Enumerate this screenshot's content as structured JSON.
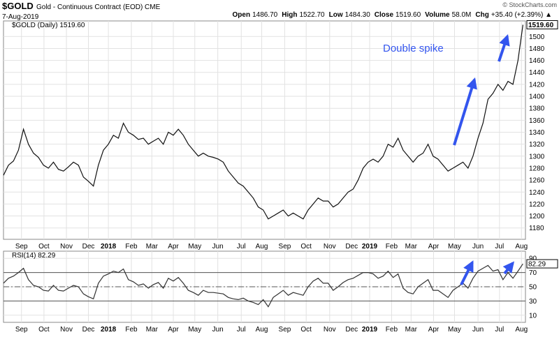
{
  "header": {
    "symbol": "$GOLD",
    "description": "Gold - Continuous Contract (EOD) CME",
    "date": "7-Aug-2019",
    "source": "© StockCharts.com",
    "quote": [
      {
        "label": "Open",
        "value": "1486.70"
      },
      {
        "label": "High",
        "value": "1522.70"
      },
      {
        "label": "Low",
        "value": "1484.30"
      },
      {
        "label": "Close",
        "value": "1519.60"
      },
      {
        "label": "Volume",
        "value": "58.0M"
      },
      {
        "label": "Chg",
        "value": "+35.40 (+2.39%) ▲"
      }
    ]
  },
  "chart_data": [
    {
      "type": "line",
      "legend": "$GOLD (Daily) 1519.60",
      "last_label": "1519.60",
      "annotation": "Double spike",
      "grid": true,
      "xlim": [
        0,
        104.5
      ],
      "ylim": [
        1161,
        1526
      ],
      "yticks": [
        1180,
        1200,
        1220,
        1240,
        1260,
        1280,
        1300,
        1320,
        1340,
        1360,
        1380,
        1400,
        1420,
        1440,
        1460,
        1480,
        1500
      ],
      "xticks": [
        {
          "value": 3.6,
          "label": "Sep"
        },
        {
          "value": 8.1,
          "label": "Oct"
        },
        {
          "value": 12.6,
          "label": "Nov"
        },
        {
          "value": 17,
          "label": "Dec"
        },
        {
          "value": 21,
          "label": "2018"
        },
        {
          "value": 25.6,
          "label": "Feb"
        },
        {
          "value": 29.7,
          "label": "Mar"
        },
        {
          "value": 34,
          "label": "Apr"
        },
        {
          "value": 38.3,
          "label": "May"
        },
        {
          "value": 42.9,
          "label": "Jun"
        },
        {
          "value": 47.6,
          "label": "Jul"
        },
        {
          "value": 51.7,
          "label": "Aug"
        },
        {
          "value": 56.3,
          "label": "Sep"
        },
        {
          "value": 60.6,
          "label": "Oct"
        },
        {
          "value": 65.3,
          "label": "Nov"
        },
        {
          "value": 69.7,
          "label": "Dec"
        },
        {
          "value": 73.3,
          "label": "2019"
        },
        {
          "value": 77.7,
          "label": "Feb"
        },
        {
          "value": 81.6,
          "label": "Mar"
        },
        {
          "value": 86.1,
          "label": "Apr"
        },
        {
          "value": 90.3,
          "label": "May"
        },
        {
          "value": 95,
          "label": "Jun"
        },
        {
          "value": 99.3,
          "label": "Jul"
        },
        {
          "value": 103.7,
          "label": "Aug"
        }
      ],
      "series": [
        {
          "name": "$GOLD (Daily)",
          "color": "#111111",
          "values": [
            1268,
            1285,
            1292,
            1310,
            1345,
            1320,
            1305,
            1298,
            1285,
            1280,
            1290,
            1278,
            1275,
            1282,
            1290,
            1285,
            1265,
            1258,
            1250,
            1285,
            1310,
            1320,
            1335,
            1330,
            1355,
            1340,
            1335,
            1328,
            1330,
            1320,
            1325,
            1330,
            1320,
            1340,
            1335,
            1345,
            1335,
            1320,
            1310,
            1300,
            1305,
            1300,
            1298,
            1295,
            1290,
            1275,
            1265,
            1255,
            1250,
            1240,
            1230,
            1215,
            1210,
            1195,
            1200,
            1205,
            1210,
            1200,
            1205,
            1200,
            1195,
            1210,
            1220,
            1230,
            1225,
            1225,
            1215,
            1220,
            1230,
            1240,
            1245,
            1260,
            1280,
            1290,
            1295,
            1290,
            1300,
            1320,
            1315,
            1330,
            1310,
            1300,
            1290,
            1300,
            1305,
            1320,
            1300,
            1295,
            1285,
            1275,
            1280,
            1285,
            1290,
            1280,
            1300,
            1330,
            1355,
            1395,
            1405,
            1420,
            1410,
            1425,
            1420,
            1460,
            1519.6
          ]
        }
      ]
    },
    {
      "type": "line",
      "legend": "RSI(14) 82.29",
      "last_label": "82.29",
      "grid": true,
      "xlim": [
        0,
        104.5
      ],
      "ylim": [
        0,
        100
      ],
      "yticks": [
        10,
        30,
        50,
        70,
        90
      ],
      "levels": [
        30,
        50,
        70
      ],
      "xticks": [
        {
          "value": 3.6,
          "label": "Sep"
        },
        {
          "value": 8.1,
          "label": "Oct"
        },
        {
          "value": 12.6,
          "label": "Nov"
        },
        {
          "value": 17,
          "label": "Dec"
        },
        {
          "value": 21,
          "label": "2018"
        },
        {
          "value": 25.6,
          "label": "Feb"
        },
        {
          "value": 29.7,
          "label": "Mar"
        },
        {
          "value": 34,
          "label": "Apr"
        },
        {
          "value": 38.3,
          "label": "May"
        },
        {
          "value": 42.9,
          "label": "Jun"
        },
        {
          "value": 47.6,
          "label": "Jul"
        },
        {
          "value": 51.7,
          "label": "Aug"
        },
        {
          "value": 56.3,
          "label": "Sep"
        },
        {
          "value": 60.6,
          "label": "Oct"
        },
        {
          "value": 65.3,
          "label": "Nov"
        },
        {
          "value": 69.7,
          "label": "Dec"
        },
        {
          "value": 73.3,
          "label": "2019"
        },
        {
          "value": 77.7,
          "label": "Feb"
        },
        {
          "value": 81.6,
          "label": "Mar"
        },
        {
          "value": 86.1,
          "label": "Apr"
        },
        {
          "value": 90.3,
          "label": "May"
        },
        {
          "value": 95,
          "label": "Jun"
        },
        {
          "value": 99.3,
          "label": "Jul"
        },
        {
          "value": 103.7,
          "label": "Aug"
        }
      ],
      "series": [
        {
          "name": "RSI(14)",
          "color": "#333333",
          "values": [
            55,
            62,
            65,
            70,
            76,
            60,
            52,
            50,
            45,
            44,
            52,
            45,
            44,
            48,
            52,
            50,
            40,
            36,
            33,
            55,
            65,
            68,
            72,
            70,
            75,
            60,
            57,
            52,
            54,
            48,
            53,
            56,
            48,
            62,
            58,
            63,
            55,
            45,
            42,
            38,
            45,
            42,
            42,
            41,
            40,
            35,
            33,
            32,
            34,
            30,
            28,
            25,
            32,
            22,
            35,
            40,
            45,
            38,
            42,
            40,
            38,
            50,
            58,
            62,
            55,
            55,
            45,
            50,
            56,
            60,
            62,
            66,
            70,
            70,
            68,
            62,
            65,
            72,
            63,
            68,
            48,
            42,
            40,
            50,
            55,
            60,
            45,
            45,
            40,
            35,
            45,
            50,
            55,
            48,
            62,
            72,
            76,
            80,
            72,
            74,
            60,
            70,
            62,
            72,
            82.29
          ]
        }
      ]
    }
  ]
}
